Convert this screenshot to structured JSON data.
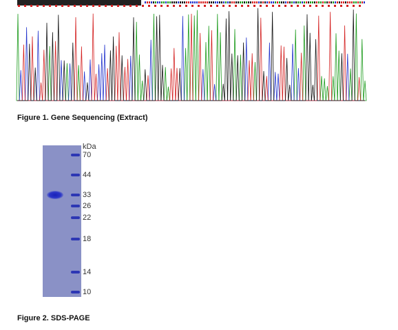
{
  "figures": [
    {
      "caption": "Figure 1. Gene Sequencing (Extract)"
    },
    {
      "caption": "Figure 2. SDS-PAGE",
      "unit": "kDa",
      "markers": [
        70,
        44,
        33,
        26,
        22,
        18,
        14,
        10
      ]
    }
  ]
}
